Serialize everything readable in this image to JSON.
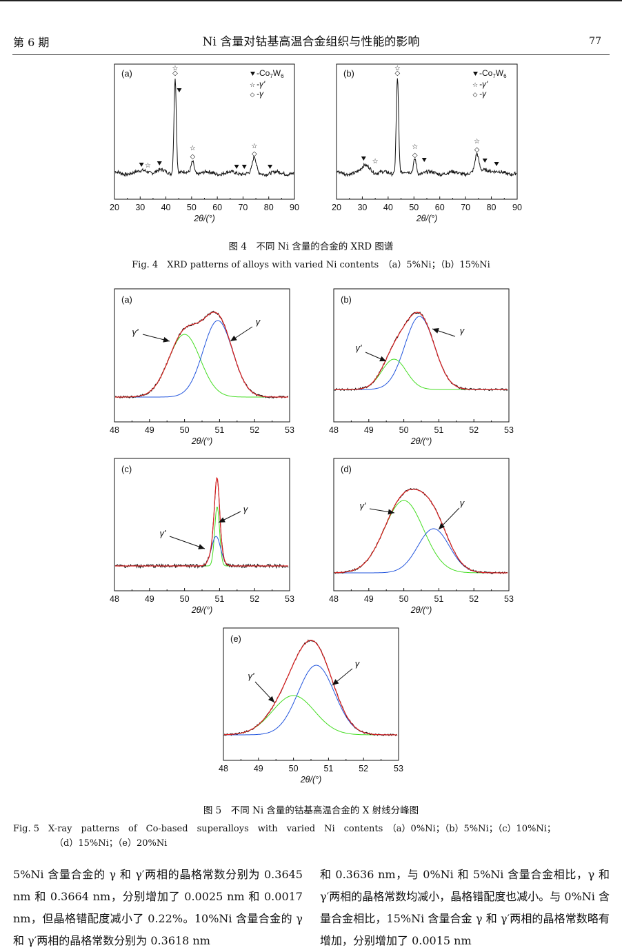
{
  "header": {
    "issue": "第 6 期",
    "title": "Ni 含量对钴基高温合金组织与性能的影响",
    "page": "77"
  },
  "fig4": {
    "caption_cn": "图 4　不同 Ni 含量的合金的 XRD 图谱",
    "caption_en": "Fig. 4　XRD patterns of alloys with varied Ni contents　（a）5%Ni；（b）15%Ni",
    "panels": [
      {
        "label": "(a)",
        "legend": [
          "-Co",
          "7",
          "W",
          "6",
          "-γ'",
          "-γ"
        ]
      },
      {
        "label": "(b)",
        "legend": [
          "-Co",
          "7",
          "W",
          "6",
          "-γ'",
          "-γ"
        ]
      }
    ],
    "x_ticks": [
      "20",
      "30",
      "40",
      "50",
      "60",
      "70",
      "80",
      "90"
    ],
    "x_label": "2θ/(°)"
  },
  "fig5": {
    "caption_cn": "图 5　不同 Ni 含量的钴基高温合金的 X 射线分峰图",
    "caption_en_1": "Fig. 5　X-ray　patterns　of　Co-based　superalloys　with　varied　Ni　contents　（a）0%Ni；（b）5%Ni；（c）10%Ni；",
    "caption_en_2": "（d）15%Ni；（e）20%Ni",
    "panels": [
      {
        "label": "(a)"
      },
      {
        "label": "(b)"
      },
      {
        "label": "(c)"
      },
      {
        "label": "(d)"
      },
      {
        "label": "(e)"
      }
    ],
    "x_ticks": [
      "48",
      "49",
      "50",
      "51",
      "52",
      "53"
    ],
    "x_label": "2θ/(°)",
    "gamma_prime": "γ'",
    "gamma": "γ"
  },
  "body": {
    "left": "5%Ni 含量合金的 γ 和 γ′两相的晶格常数分别为 0.3645 nm 和 0.3664 nm，分别增加了 0.0025 nm 和 0.0017 nm，但晶格错配度减小了 0.22%。10%Ni 含量合金的 γ 和 γ′两相的晶格常数分别为 0.3618 nm",
    "right": "和 0.3636 nm，与 0%Ni 和 5%Ni 含量合金相比，γ 和 γ′两相的晶格常数均减小，晶格错配度也减小。与 0%Ni 含量合金相比，15%Ni 含量合金 γ 和 γ′两相的晶格常数略有增加，分别增加了 0.0015 nm"
  }
}
